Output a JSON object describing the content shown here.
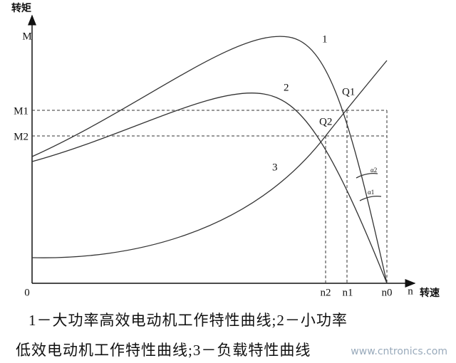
{
  "axes": {
    "y_title": "转矩",
    "y_symbol": "M",
    "m1": "M1",
    "m2": "M2",
    "origin": "0",
    "n2": "n2",
    "n1": "n1",
    "n0": "n0",
    "x_symbol": "n",
    "x_title": "转速"
  },
  "curves": {
    "c1": "1",
    "c2": "2",
    "c3": "3",
    "q1": "Q1",
    "q2": "Q2",
    "a2": "α2",
    "a1": "α1"
  },
  "caption": [
    "1－大功率高效电动机工作特性曲线;2－小功率",
    "低效电动机工作特性曲线;3－负载特性曲线"
  ],
  "watermark": "www.cntronics.com"
}
